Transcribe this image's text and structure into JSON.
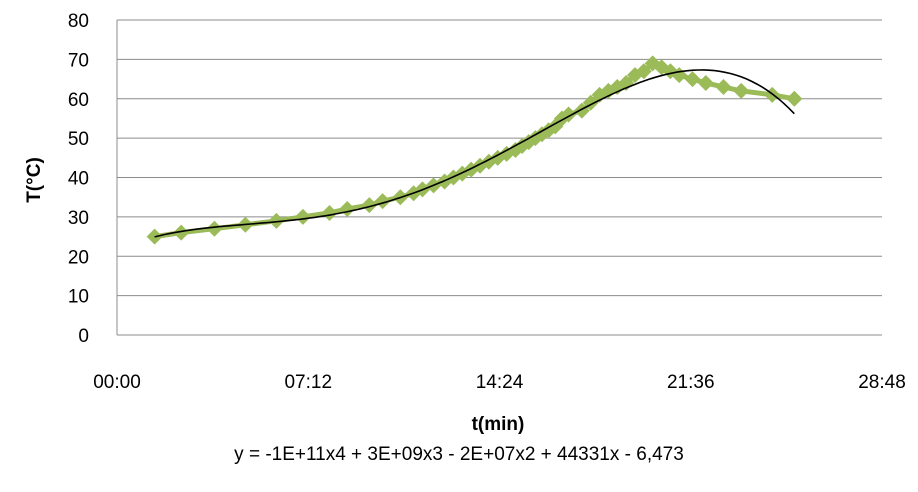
{
  "chart_data": {
    "type": "scatter",
    "title": "",
    "xlabel": "t(min)",
    "ylabel": "T(°C)",
    "xlim": [
      "00:00",
      "28:48"
    ],
    "ylim": [
      0,
      80
    ],
    "x_ticks": [
      "00:00",
      "07:12",
      "14:24",
      "21:36",
      "28:48"
    ],
    "y_ticks": [
      0,
      10,
      20,
      30,
      40,
      50,
      60,
      70,
      80
    ],
    "grid": true,
    "legend": "none",
    "marker_color": "#9bbb59",
    "marker": "diamond",
    "trendline": {
      "type": "polynomial-4",
      "color": "#000000",
      "equation": "y = -1E+11x4 + 3E+09x3 - 2E+07x2 + 44331x - 6,473"
    },
    "series": [
      {
        "x": [
          "01:25",
          "02:25",
          "03:40",
          "04:50",
          "06:00",
          "07:00",
          "08:00",
          "08:40",
          "09:30",
          "10:00",
          "10:40",
          "11:10",
          "11:30",
          "11:55",
          "12:20",
          "12:40",
          "13:00",
          "13:20",
          "13:40",
          "14:00",
          "14:20",
          "14:40",
          "15:00",
          "15:15",
          "15:30",
          "15:45",
          "16:00",
          "16:15",
          "16:30",
          "16:45",
          "17:00",
          "17:30",
          "17:50",
          "18:10",
          "18:30",
          "18:50",
          "19:10",
          "19:30",
          "19:50",
          "20:10",
          "20:30",
          "20:50",
          "21:10",
          "21:40",
          "22:10",
          "22:50",
          "23:30",
          "24:40",
          "25:30"
        ],
        "y": [
          25,
          26,
          27,
          28,
          29,
          30,
          31,
          32,
          33,
          34,
          35,
          36,
          37,
          38,
          39,
          40,
          41,
          42,
          43,
          44,
          45,
          46,
          47,
          48,
          49,
          50,
          51,
          52,
          53,
          55,
          56,
          57,
          59,
          61,
          62,
          63,
          64,
          66,
          67,
          69,
          68,
          67,
          66,
          65,
          64,
          63,
          62,
          61,
          60
        ]
      }
    ]
  }
}
